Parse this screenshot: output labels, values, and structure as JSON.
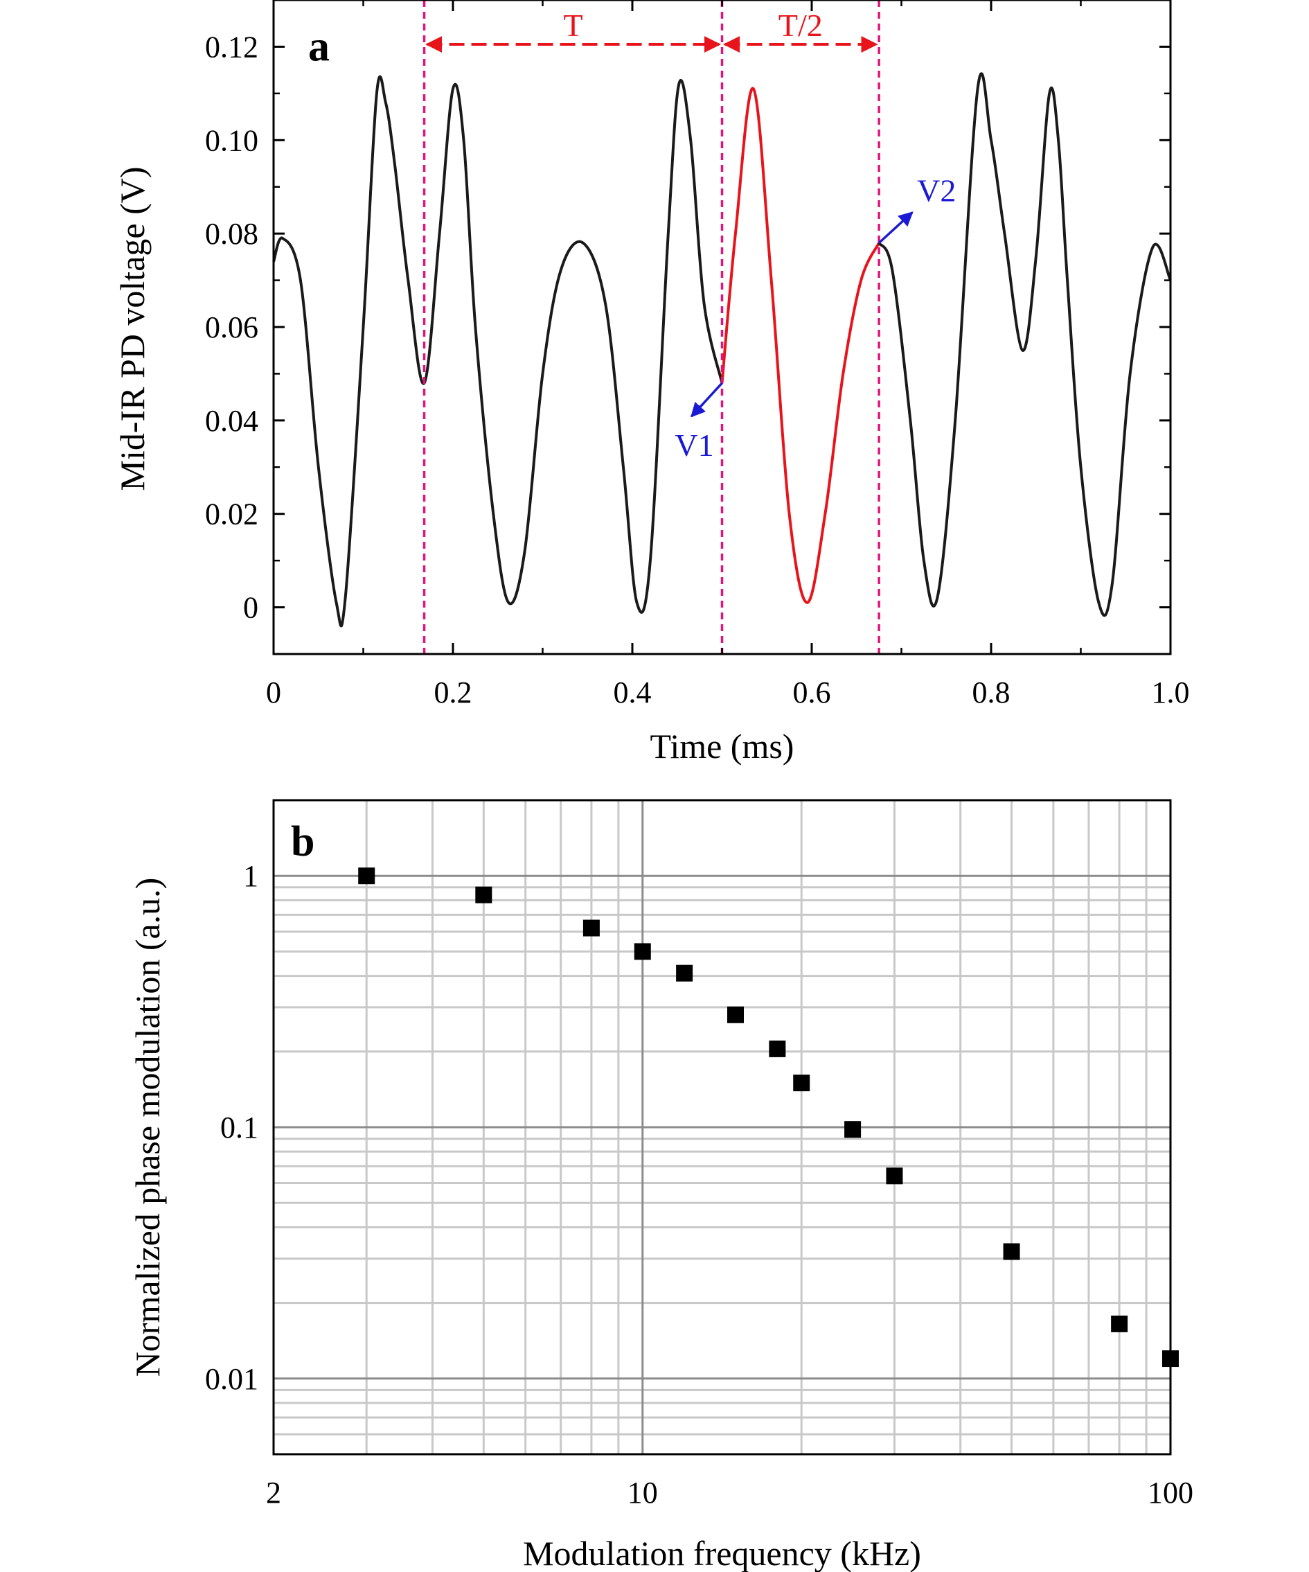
{
  "chart_data": [
    {
      "type": "line",
      "panel_label": "a",
      "xlabel": "Time (ms)",
      "ylabel": "Mid-IR PD voltage (V)",
      "xlim": [
        0,
        1.0
      ],
      "ylim": [
        -0.01,
        0.13
      ],
      "x_ticks": [
        "0",
        "0.2",
        "0.4",
        "0.6",
        "0.8",
        "1.0"
      ],
      "x_tick_values": [
        0,
        0.2,
        0.4,
        0.6,
        0.8,
        1.0
      ],
      "y_ticks": [
        "0",
        "0.02",
        "0.04",
        "0.06",
        "0.08",
        "0.10",
        "0.12"
      ],
      "y_tick_values": [
        0,
        0.02,
        0.04,
        0.06,
        0.08,
        0.1,
        0.12
      ],
      "grid": false,
      "series": [
        {
          "color": "#1a1a1a",
          "x": [
            0,
            0.01,
            0.03,
            0.05,
            0.07,
            0.08,
            0.1,
            0.115,
            0.125,
            0.135,
            0.15,
            0.168,
            0.185,
            0.2,
            0.212,
            0.225,
            0.245,
            0.262,
            0.28,
            0.3,
            0.32,
            0.345,
            0.37,
            0.39,
            0.405,
            0.42,
            0.44,
            0.452,
            0.465,
            0.48,
            0.5
          ],
          "y": [
            0.074,
            0.079,
            0.07,
            0.03,
            0.001,
            0.002,
            0.06,
            0.11,
            0.108,
            0.095,
            0.07,
            0.048,
            0.08,
            0.111,
            0.1,
            0.06,
            0.02,
            0.001,
            0.012,
            0.05,
            0.072,
            0.078,
            0.065,
            0.03,
            0.001,
            0.01,
            0.08,
            0.112,
            0.1,
            0.065,
            0.048
          ]
        },
        {
          "color": "#e8141b",
          "x": [
            0.5,
            0.515,
            0.535,
            0.555,
            0.575,
            0.595,
            0.615,
            0.635,
            0.655,
            0.675
          ],
          "y": [
            0.048,
            0.08,
            0.111,
            0.07,
            0.02,
            0.001,
            0.02,
            0.05,
            0.07,
            0.078
          ]
        },
        {
          "color": "#1a1a1a",
          "x": [
            0.675,
            0.69,
            0.71,
            0.725,
            0.74,
            0.76,
            0.785,
            0.8,
            0.815,
            0.835,
            0.85,
            0.865,
            0.875,
            0.885,
            0.9,
            0.92,
            0.935,
            0.955,
            0.98,
            1.0
          ],
          "y": [
            0.078,
            0.072,
            0.04,
            0.01,
            0.002,
            0.04,
            0.111,
            0.1,
            0.08,
            0.055,
            0.075,
            0.11,
            0.1,
            0.07,
            0.03,
            0.001,
            0.005,
            0.05,
            0.077,
            0.07
          ]
        }
      ],
      "annotations": {
        "T": "T",
        "T_half": "T/2",
        "V1": "V1",
        "V2": "V2",
        "marker_lines_x": [
          0.168,
          0.5,
          0.675
        ],
        "marker_color": "#e0157c",
        "arrow_color_red": "#e8141b",
        "arrow_color_blue": "#1a1ad4"
      }
    },
    {
      "type": "scatter",
      "panel_label": "b",
      "xlabel": "Modulation frequency (kHz)",
      "ylabel": "Normalized phase modulation (a.u.)",
      "xscale": "log",
      "yscale": "log",
      "xlim": [
        2,
        100
      ],
      "ylim": [
        0.005,
        2
      ],
      "x_ticks": [
        "2",
        "10",
        "100"
      ],
      "x_tick_values": [
        2,
        10,
        100
      ],
      "y_ticks": [
        "0.01",
        "0.1",
        "1"
      ],
      "y_tick_values": [
        0.01,
        0.1,
        1
      ],
      "grid": true,
      "marker": "square",
      "marker_color": "#000000",
      "x": [
        3,
        5,
        8,
        10,
        12,
        15,
        18,
        20,
        25,
        30,
        50,
        80,
        100
      ],
      "y": [
        1.0,
        0.84,
        0.62,
        0.5,
        0.41,
        0.28,
        0.205,
        0.15,
        0.098,
        0.064,
        0.032,
        0.0165,
        0.012
      ]
    }
  ]
}
